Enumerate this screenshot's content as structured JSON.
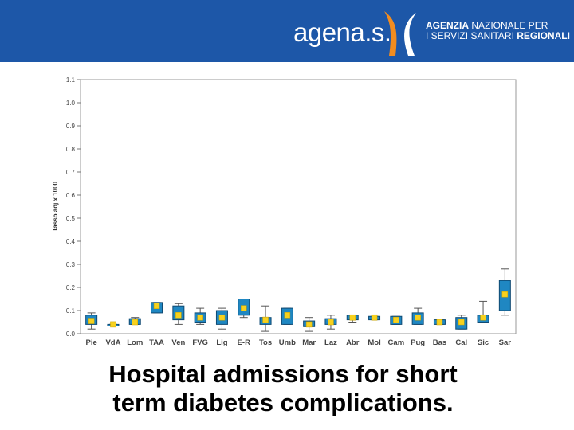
{
  "header": {
    "logo_text": "agena.s.",
    "tagline_bold_1": "AGENZIA",
    "tagline_1": " NAZIONALE PER",
    "tagline_2": "I SERVIZI SANITARI ",
    "tagline_bold_2": "REGIONALI"
  },
  "colors": {
    "banner": "#1d57a8",
    "logo_orange": "#f28c1f",
    "box_fill": "#1f87c2",
    "box_stroke": "#104a73",
    "mean_marker": "#f7d11e"
  },
  "chart_data": {
    "type": "box",
    "ylabel": "Tasso adj x 1000",
    "xlabel": "",
    "ylim": [
      0,
      1.1
    ],
    "yticks": [
      "0.0",
      "0.1",
      "0.2",
      "0.3",
      "0.4",
      "0.5",
      "0.6",
      "0.7",
      "0.8",
      "0.9",
      "1.0",
      "1.1"
    ],
    "grid": false,
    "categories": [
      "Pie",
      "VdA",
      "Lom",
      "TAA",
      "Ven",
      "FVG",
      "Lig",
      "E-R",
      "Tos",
      "Umb",
      "Mar",
      "Laz",
      "Abr",
      "Mol",
      "Cam",
      "Pug",
      "Bas",
      "Cal",
      "Sic",
      "Sar"
    ],
    "boxes": [
      {
        "min": 0.02,
        "q1": 0.04,
        "q3": 0.08,
        "max": 0.09,
        "mean": 0.055
      },
      {
        "min": 0.04,
        "q1": 0.04,
        "q3": 0.04,
        "max": 0.04,
        "mean": 0.04
      },
      {
        "min": 0.04,
        "q1": 0.04,
        "q3": 0.065,
        "max": 0.07,
        "mean": 0.05
      },
      {
        "min": 0.09,
        "q1": 0.09,
        "q3": 0.135,
        "max": 0.135,
        "mean": 0.12
      },
      {
        "min": 0.04,
        "q1": 0.06,
        "q3": 0.12,
        "max": 0.13,
        "mean": 0.08
      },
      {
        "min": 0.04,
        "q1": 0.05,
        "q3": 0.09,
        "max": 0.11,
        "mean": 0.07
      },
      {
        "min": 0.02,
        "q1": 0.04,
        "q3": 0.1,
        "max": 0.11,
        "mean": 0.07
      },
      {
        "min": 0.07,
        "q1": 0.08,
        "q3": 0.15,
        "max": 0.15,
        "mean": 0.11
      },
      {
        "min": 0.01,
        "q1": 0.04,
        "q3": 0.07,
        "max": 0.12,
        "mean": 0.06
      },
      {
        "min": 0.04,
        "q1": 0.04,
        "q3": 0.11,
        "max": 0.11,
        "mean": 0.08
      },
      {
        "min": 0.01,
        "q1": 0.03,
        "q3": 0.055,
        "max": 0.07,
        "mean": 0.04
      },
      {
        "min": 0.02,
        "q1": 0.04,
        "q3": 0.065,
        "max": 0.08,
        "mean": 0.05
      },
      {
        "min": 0.05,
        "q1": 0.06,
        "q3": 0.08,
        "max": 0.08,
        "mean": 0.07
      },
      {
        "min": 0.06,
        "q1": 0.06,
        "q3": 0.075,
        "max": 0.075,
        "mean": 0.07
      },
      {
        "min": 0.04,
        "q1": 0.04,
        "q3": 0.075,
        "max": 0.075,
        "mean": 0.06
      },
      {
        "min": 0.04,
        "q1": 0.04,
        "q3": 0.09,
        "max": 0.11,
        "mean": 0.07
      },
      {
        "min": 0.04,
        "q1": 0.04,
        "q3": 0.06,
        "max": 0.06,
        "mean": 0.05
      },
      {
        "min": 0.02,
        "q1": 0.02,
        "q3": 0.07,
        "max": 0.08,
        "mean": 0.05
      },
      {
        "min": 0.05,
        "q1": 0.05,
        "q3": 0.08,
        "max": 0.14,
        "mean": 0.07
      },
      {
        "min": 0.08,
        "q1": 0.1,
        "q3": 0.23,
        "max": 0.28,
        "mean": 0.17
      }
    ]
  },
  "caption": {
    "line1": "Hospital admissions for short",
    "line2": "term diabetes complications."
  }
}
